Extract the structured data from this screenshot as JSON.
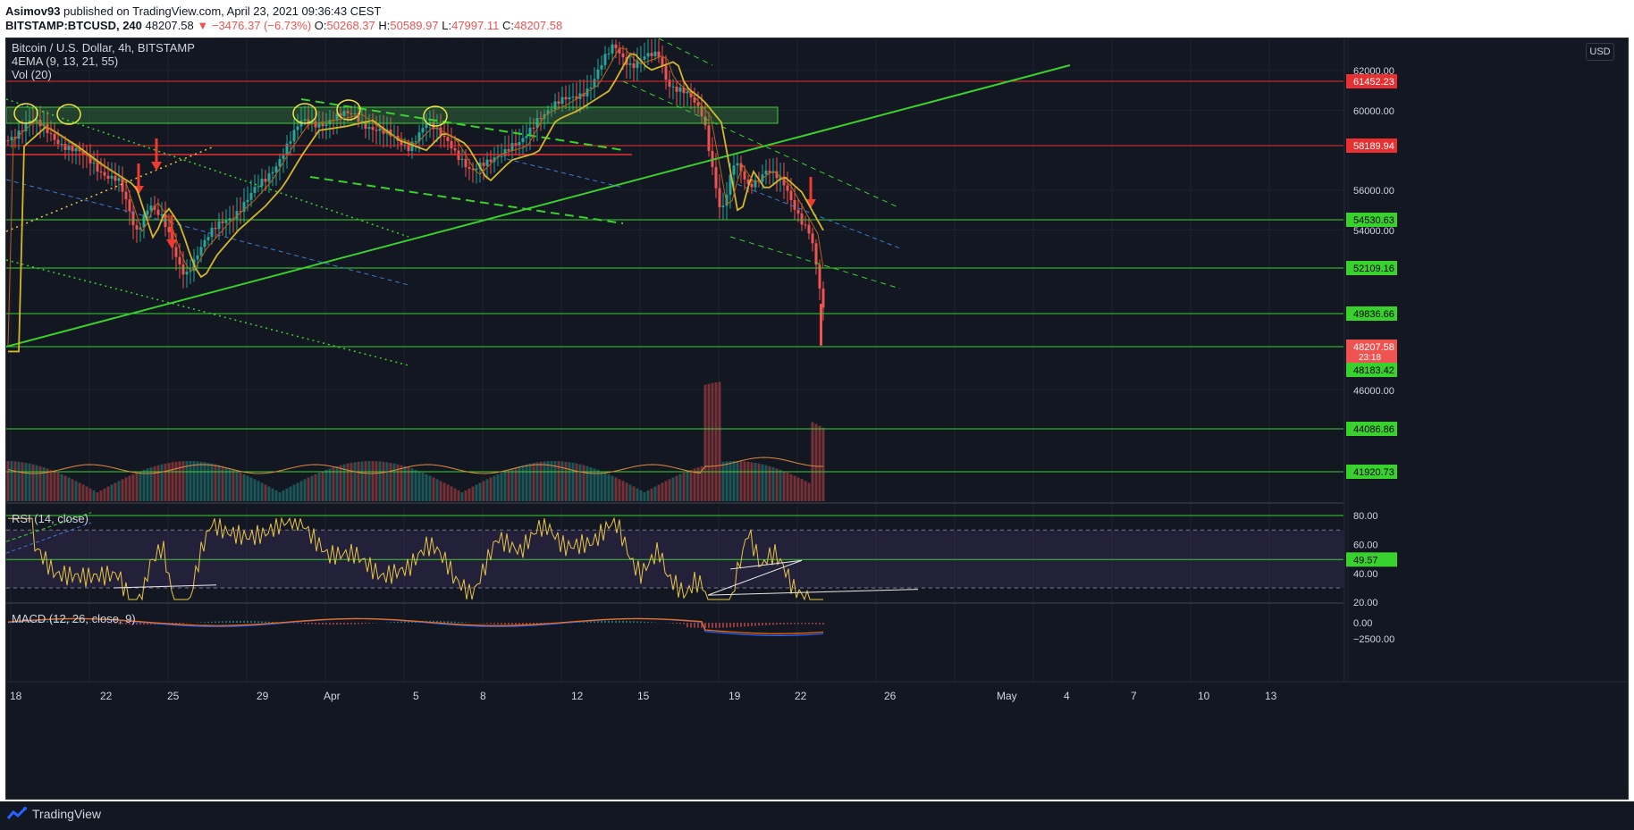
{
  "header": {
    "author": "Asimov93",
    "published_text": "published on TradingView.com, April 23, 2021 09:36:43 CEST",
    "symbol": "BITSTAMP:BTCUSD, 240",
    "last_price": "48207.58",
    "change": "▼ −3476.37 (−6.73%)",
    "open_label": "O:",
    "open": "50268.37",
    "high_label": "H:",
    "high": "50589.97",
    "low_label": "L:",
    "low": "47997.11",
    "close_label": "C:",
    "close": "48207.58"
  },
  "legends": {
    "main": "Bitcoin / U.S. Dollar, 4h, BITSTAMP",
    "ema": "4EMA (9, 13, 21, 55)",
    "vol": "Vol (20)",
    "rsi": "RSI (14, close)",
    "macd": "MACD (12, 26, close, 9)"
  },
  "currency_button": "USD",
  "colors": {
    "background": "#131722",
    "support_line": "#39d12d",
    "resistance_line": "#e83030",
    "up_candle": "#26a69a",
    "down_candle": "#ef5350",
    "ema_slow": "#d4b62a",
    "rsi_line": "#e8c547",
    "arrow": "#ef3b2f"
  },
  "price_axis": {
    "ticks": [
      "62000.00",
      "60000.00",
      "56000.00",
      "54000.00",
      "46000.00"
    ],
    "red_levels": [
      "61452.23",
      "58189.94"
    ],
    "green_levels": [
      "54530.63",
      "52109.16",
      "49836.66",
      "48183.42",
      "44086.86",
      "41920.73"
    ],
    "current_price": "48207.58",
    "countdown": "23:18"
  },
  "rsi_axis": {
    "ticks": [
      "80.00",
      "60.00",
      "40.00",
      "20.00"
    ],
    "current": "49.57"
  },
  "macd_axis": {
    "ticks": [
      "0.00",
      "−2500.00"
    ]
  },
  "time_axis": [
    "18",
    "22",
    "25",
    "29",
    "Apr",
    "5",
    "8",
    "12",
    "15",
    "19",
    "22",
    "26",
    "May",
    "4",
    "7",
    "10",
    "13"
  ],
  "footer": {
    "brand": "TradingView",
    "logo_icon": "tradingview-logo-icon"
  }
}
